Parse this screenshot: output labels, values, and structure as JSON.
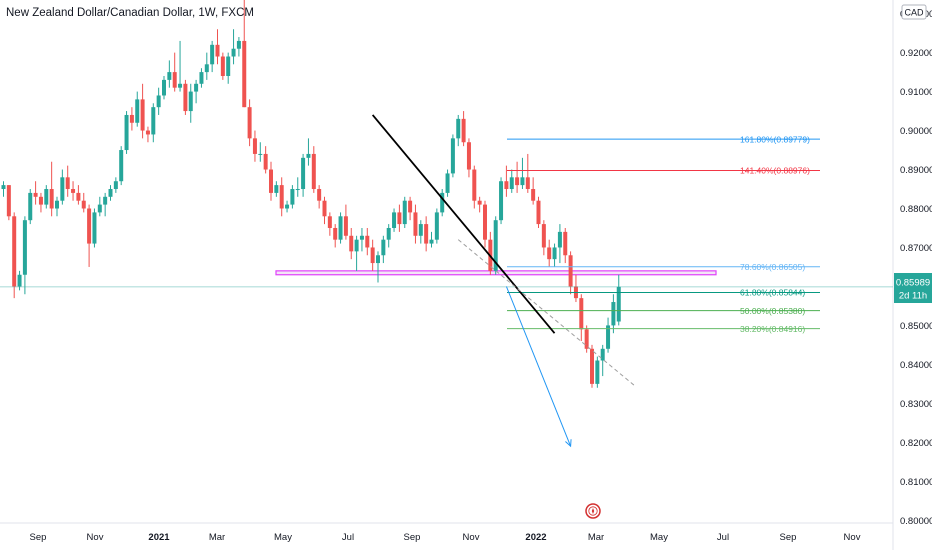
{
  "title": "New Zealand Dollar/Canadian Dollar, 1W, FXCM",
  "currency_badge": "CAD",
  "price_label": {
    "price": "0.85989",
    "countdown": "2d 11h"
  },
  "colors": {
    "up": "#26a69a",
    "down": "#ef5350",
    "trend": "#000000",
    "fib_161": "#2196f3",
    "fib_141": "#f23645",
    "fib_78": "#64b5f6",
    "fib_61": "#089981",
    "fib_50": "#4caf50",
    "fib_38": "#66bb6a",
    "support_zone": "#e040fb",
    "projection": "#2196f3",
    "price_line": "#26a69a"
  },
  "chart_data": {
    "type": "candlestick",
    "title": "New Zealand Dollar/Canadian Dollar, 1W, FXCM",
    "y_axis": {
      "side": "right",
      "ticks": [
        "0.80000",
        "0.81000",
        "0.82000",
        "0.83000",
        "0.84000",
        "0.85000",
        "0.86000",
        "0.87000",
        "0.88000",
        "0.89000",
        "0.90000",
        "0.91000",
        "0.92000",
        "0.93000"
      ],
      "range": [
        0.7993,
        0.9335
      ]
    },
    "x_axis": {
      "ticks": [
        "Sep",
        "Nov",
        "2021",
        "Mar",
        "May",
        "Jul",
        "Sep",
        "Nov",
        "2022",
        "Mar",
        "May",
        "Jul",
        "Sep",
        "Nov"
      ],
      "bold": [
        "2021",
        "2022"
      ]
    },
    "grid": false,
    "last_price": 0.85989,
    "candles": [
      [
        0.885,
        0.887,
        0.883,
        0.886
      ],
      [
        0.886,
        0.886,
        0.877,
        0.878
      ],
      [
        0.878,
        0.879,
        0.857,
        0.86
      ],
      [
        0.86,
        0.864,
        0.859,
        0.863
      ],
      [
        0.863,
        0.878,
        0.858,
        0.877
      ],
      [
        0.877,
        0.885,
        0.876,
        0.884
      ],
      [
        0.884,
        0.887,
        0.881,
        0.883
      ],
      [
        0.883,
        0.884,
        0.879,
        0.881
      ],
      [
        0.881,
        0.886,
        0.88,
        0.885
      ],
      [
        0.885,
        0.892,
        0.878,
        0.88
      ],
      [
        0.88,
        0.883,
        0.878,
        0.882
      ],
      [
        0.882,
        0.89,
        0.881,
        0.888
      ],
      [
        0.888,
        0.891,
        0.883,
        0.885
      ],
      [
        0.885,
        0.887,
        0.882,
        0.884
      ],
      [
        0.884,
        0.886,
        0.881,
        0.882
      ],
      [
        0.882,
        0.884,
        0.879,
        0.88
      ],
      [
        0.88,
        0.881,
        0.865,
        0.871
      ],
      [
        0.871,
        0.88,
        0.87,
        0.879
      ],
      [
        0.879,
        0.883,
        0.878,
        0.881
      ],
      [
        0.881,
        0.884,
        0.878,
        0.883
      ],
      [
        0.883,
        0.886,
        0.882,
        0.885
      ],
      [
        0.885,
        0.888,
        0.884,
        0.887
      ],
      [
        0.887,
        0.896,
        0.886,
        0.895
      ],
      [
        0.895,
        0.905,
        0.894,
        0.904
      ],
      [
        0.904,
        0.906,
        0.9,
        0.902
      ],
      [
        0.902,
        0.91,
        0.901,
        0.908
      ],
      [
        0.908,
        0.912,
        0.898,
        0.9
      ],
      [
        0.9,
        0.901,
        0.897,
        0.899
      ],
      [
        0.899,
        0.907,
        0.897,
        0.906
      ],
      [
        0.906,
        0.911,
        0.904,
        0.909
      ],
      [
        0.909,
        0.914,
        0.908,
        0.913
      ],
      [
        0.913,
        0.918,
        0.911,
        0.915
      ],
      [
        0.915,
        0.92,
        0.91,
        0.911
      ],
      [
        0.911,
        0.923,
        0.91,
        0.912
      ],
      [
        0.912,
        0.913,
        0.904,
        0.905
      ],
      [
        0.905,
        0.912,
        0.902,
        0.91
      ],
      [
        0.91,
        0.913,
        0.907,
        0.912
      ],
      [
        0.912,
        0.916,
        0.911,
        0.915
      ],
      [
        0.915,
        0.92,
        0.913,
        0.917
      ],
      [
        0.917,
        0.923,
        0.915,
        0.922
      ],
      [
        0.922,
        0.926,
        0.917,
        0.919
      ],
      [
        0.919,
        0.92,
        0.913,
        0.914
      ],
      [
        0.914,
        0.92,
        0.912,
        0.919
      ],
      [
        0.919,
        0.926,
        0.917,
        0.921
      ],
      [
        0.921,
        0.924,
        0.919,
        0.923
      ],
      [
        0.923,
        0.935,
        0.906,
        0.906
      ],
      [
        0.906,
        0.908,
        0.896,
        0.898
      ],
      [
        0.898,
        0.9,
        0.892,
        0.894
      ],
      [
        0.894,
        0.897,
        0.892,
        0.894
      ],
      [
        0.894,
        0.896,
        0.889,
        0.89
      ],
      [
        0.89,
        0.892,
        0.882,
        0.884
      ],
      [
        0.884,
        0.887,
        0.883,
        0.886
      ],
      [
        0.886,
        0.888,
        0.878,
        0.88
      ],
      [
        0.88,
        0.882,
        0.879,
        0.881
      ],
      [
        0.881,
        0.886,
        0.88,
        0.885
      ],
      [
        0.885,
        0.888,
        0.883,
        0.885
      ],
      [
        0.885,
        0.894,
        0.883,
        0.893
      ],
      [
        0.893,
        0.898,
        0.891,
        0.894
      ],
      [
        0.894,
        0.896,
        0.884,
        0.885
      ],
      [
        0.885,
        0.886,
        0.88,
        0.882
      ],
      [
        0.882,
        0.883,
        0.876,
        0.878
      ],
      [
        0.878,
        0.879,
        0.873,
        0.875
      ],
      [
        0.875,
        0.876,
        0.87,
        0.872
      ],
      [
        0.872,
        0.879,
        0.871,
        0.878
      ],
      [
        0.878,
        0.881,
        0.872,
        0.873
      ],
      [
        0.873,
        0.875,
        0.867,
        0.869
      ],
      [
        0.869,
        0.873,
        0.864,
        0.872
      ],
      [
        0.872,
        0.875,
        0.869,
        0.873
      ],
      [
        0.873,
        0.875,
        0.868,
        0.87
      ],
      [
        0.87,
        0.872,
        0.864,
        0.866
      ],
      [
        0.866,
        0.869,
        0.861,
        0.868
      ],
      [
        0.868,
        0.873,
        0.866,
        0.872
      ],
      [
        0.872,
        0.876,
        0.87,
        0.875
      ],
      [
        0.875,
        0.88,
        0.874,
        0.879
      ],
      [
        0.879,
        0.881,
        0.874,
        0.876
      ],
      [
        0.876,
        0.883,
        0.875,
        0.882
      ],
      [
        0.882,
        0.883,
        0.877,
        0.879
      ],
      [
        0.879,
        0.881,
        0.871,
        0.873
      ],
      [
        0.873,
        0.877,
        0.871,
        0.876
      ],
      [
        0.876,
        0.878,
        0.869,
        0.871
      ],
      [
        0.871,
        0.874,
        0.87,
        0.872
      ],
      [
        0.872,
        0.88,
        0.871,
        0.879
      ],
      [
        0.879,
        0.885,
        0.878,
        0.884
      ],
      [
        0.884,
        0.89,
        0.883,
        0.889
      ],
      [
        0.889,
        0.899,
        0.888,
        0.898
      ],
      [
        0.898,
        0.904,
        0.896,
        0.903
      ],
      [
        0.903,
        0.905,
        0.896,
        0.897
      ],
      [
        0.897,
        0.898,
        0.888,
        0.89
      ],
      [
        0.89,
        0.891,
        0.88,
        0.882
      ],
      [
        0.882,
        0.883,
        0.879,
        0.881
      ],
      [
        0.881,
        0.882,
        0.87,
        0.872
      ],
      [
        0.872,
        0.874,
        0.863,
        0.864
      ],
      [
        0.864,
        0.878,
        0.863,
        0.877
      ],
      [
        0.877,
        0.888,
        0.876,
        0.887
      ],
      [
        0.887,
        0.891,
        0.883,
        0.885
      ],
      [
        0.885,
        0.89,
        0.884,
        0.888
      ],
      [
        0.888,
        0.892,
        0.884,
        0.886
      ],
      [
        0.886,
        0.893,
        0.885,
        0.888
      ],
      [
        0.888,
        0.894,
        0.884,
        0.885
      ],
      [
        0.885,
        0.888,
        0.881,
        0.882
      ],
      [
        0.882,
        0.883,
        0.875,
        0.876
      ],
      [
        0.876,
        0.877,
        0.868,
        0.87
      ],
      [
        0.87,
        0.872,
        0.865,
        0.867
      ],
      [
        0.867,
        0.871,
        0.865,
        0.87
      ],
      [
        0.87,
        0.876,
        0.866,
        0.874
      ],
      [
        0.874,
        0.875,
        0.866,
        0.868
      ],
      [
        0.868,
        0.869,
        0.858,
        0.86
      ],
      [
        0.86,
        0.863,
        0.856,
        0.857
      ],
      [
        0.857,
        0.858,
        0.846,
        0.849
      ],
      [
        0.849,
        0.85,
        0.843,
        0.844
      ],
      [
        0.844,
        0.845,
        0.834,
        0.835
      ],
      [
        0.835,
        0.842,
        0.834,
        0.841
      ],
      [
        0.841,
        0.845,
        0.837,
        0.844
      ],
      [
        0.844,
        0.852,
        0.843,
        0.85
      ],
      [
        0.85,
        0.858,
        0.848,
        0.856
      ],
      [
        0.851,
        0.863,
        0.85,
        0.8599
      ]
    ]
  },
  "annotations": {
    "fib_levels": [
      {
        "label": "161.80%(0.89779)",
        "price": 0.89779,
        "color_key": "fib_161"
      },
      {
        "label": "141.40%(0.88976)",
        "price": 0.88976,
        "color_key": "fib_141"
      },
      {
        "label": "78.60%(0.86505)",
        "price": 0.86505,
        "color_key": "fib_78"
      },
      {
        "label": "61.80%(0.85844)",
        "price": 0.85844,
        "color_key": "fib_61"
      },
      {
        "label": "50.00%(0.85380)",
        "price": 0.8538,
        "color_key": "fib_50"
      },
      {
        "label": "38.20%(0.84916)",
        "price": 0.84916,
        "color_key": "fib_38"
      }
    ],
    "support_zone": {
      "top": 0.864,
      "bottom": 0.863
    },
    "trendline": {
      "start": {
        "bar": 69,
        "price": 0.904
      },
      "end": {
        "bar": 103,
        "price": 0.848
      }
    },
    "dashed_line": {
      "start": {
        "bar": 85,
        "price": 0.872
      },
      "end": {
        "bar": 118,
        "price": 0.8345
      }
    },
    "projection": {
      "start": {
        "bar": 94,
        "price": 0.86
      },
      "end": {
        "bar": 106,
        "price": 0.819
      }
    }
  },
  "flag_icon": "canada-flag-icon"
}
